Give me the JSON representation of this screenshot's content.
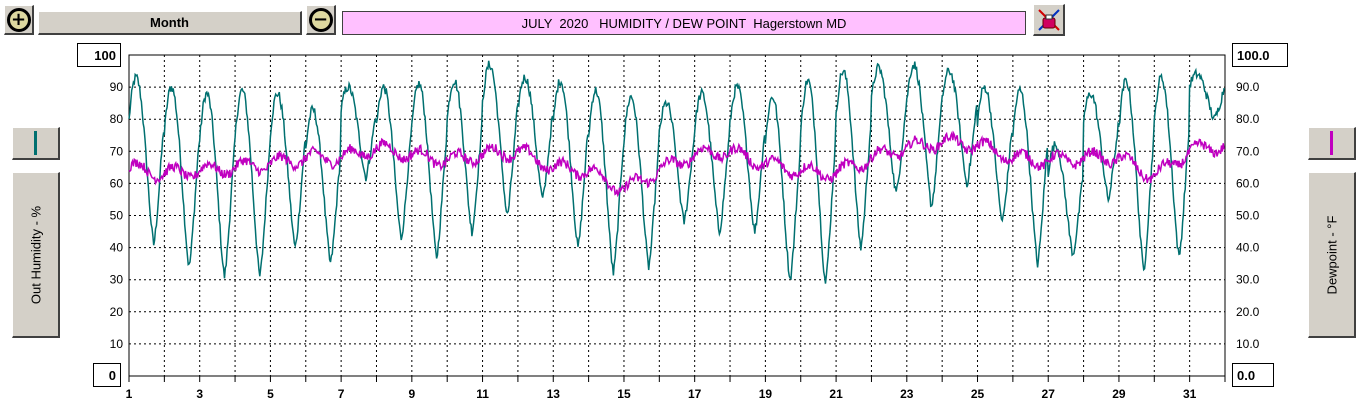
{
  "toolbar": {
    "period_label": "Month",
    "zoom_in_symbol": "+",
    "zoom_out_symbol": "−",
    "title": "JULY  2020   HUMIDITY / DEW POINT  Hagerstown MD",
    "print_icon": "printer-icon"
  },
  "left_axis": {
    "label": "Out Humidity - %",
    "top_value": "100",
    "bottom_value": "0",
    "swatch_color": "#007070"
  },
  "right_axis": {
    "label": "Dewpoint - °F",
    "top_value": "100.0",
    "bottom_value": "0.0",
    "swatch_color": "#c000c0"
  },
  "chart_data": {
    "type": "line",
    "title": "JULY  2020   HUMIDITY / DEW POINT  Hagerstown MD",
    "xlim": [
      1,
      32
    ],
    "x_ticks": [
      1,
      3,
      5,
      7,
      9,
      11,
      13,
      15,
      17,
      19,
      21,
      23,
      25,
      27,
      29,
      31
    ],
    "ylim_left": [
      0,
      100
    ],
    "ylim_right": [
      0,
      100
    ],
    "y_ticks_left": [
      "10",
      "20",
      "30",
      "40",
      "50",
      "60",
      "70",
      "80",
      "90"
    ],
    "y_ticks_right": [
      "10.0",
      "20.0",
      "30.0",
      "40.0",
      "50.0",
      "60.0",
      "70.0",
      "80.0",
      "90.0"
    ],
    "ylabel_left": "Out Humidity - %",
    "ylabel_right": "Dewpoint - °F",
    "grid": true,
    "series": [
      {
        "axis": "left",
        "color": "#007070",
        "daily_max": [
          93,
          90,
          88,
          89,
          88,
          83,
          90,
          90,
          91,
          92,
          97,
          93,
          92,
          89,
          87,
          85,
          88,
          90,
          87,
          92,
          95,
          96,
          97,
          95,
          90,
          89,
          72,
          88,
          92,
          93,
          94
        ],
        "daily_min": [
          41,
          34,
          31,
          31,
          40,
          35,
          62,
          43,
          37,
          45,
          50,
          55,
          40,
          32,
          34,
          48,
          45,
          45,
          30,
          29,
          40,
          57,
          53,
          60,
          48,
          35,
          38,
          55,
          33,
          37,
          80
        ]
      },
      {
        "axis": "right",
        "color": "#c000c0",
        "daily_mean": [
          65,
          63,
          64,
          65,
          66,
          68,
          68,
          71,
          69,
          67,
          69,
          70,
          65,
          64,
          58,
          64,
          69,
          70,
          66,
          64,
          63,
          68,
          71,
          73,
          72,
          68,
          67,
          68,
          68,
          62,
          70,
          72
        ]
      }
    ]
  }
}
